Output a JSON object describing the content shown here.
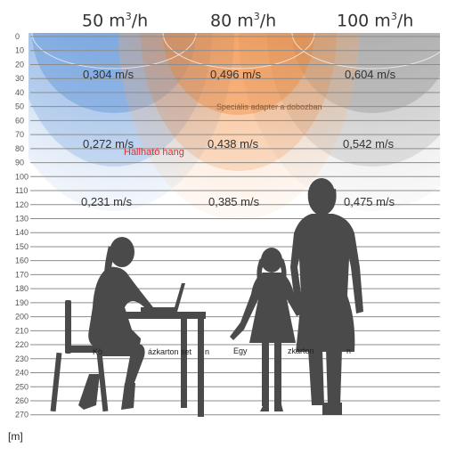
{
  "columns": [
    {
      "flow": "50 m",
      "unit_sup": "3",
      "unit_rest": "/h",
      "color": "#3d7ed2"
    },
    {
      "flow": "80 m",
      "unit_sup": "3",
      "unit_rest": "/h",
      "color": "#f07d26"
    },
    {
      "flow": "100 m",
      "unit_sup": "3",
      "unit_rest": "/h",
      "color": "#9a9a9a"
    }
  ],
  "velocities": [
    [
      "0,304 m/s",
      "0,496 m/s",
      "0,604 m/s"
    ],
    [
      "0,272 m/s",
      "0,438 m/s",
      "0,542 m/s"
    ],
    [
      "0,231 m/s",
      "0,385 m/s",
      "0,475 m/s"
    ]
  ],
  "annotations": {
    "special_adapter": "Speciális adapter a dobozban",
    "audible_sound": "Hallható hang",
    "left_caption_start": "Kö",
    "left_caption_end": "ázkarton set",
    "left_caption_tail": "n",
    "right_caption_start": "Egy",
    "right_caption_end": "zkarton",
    "right_caption_tail": "n"
  },
  "depth_ticks": [
    "0",
    "10",
    "20",
    "30",
    "40",
    "50",
    "60",
    "70",
    "80",
    "90",
    "100",
    "110",
    "120",
    "130",
    "140",
    "150",
    "160",
    "170",
    "180",
    "190",
    "200",
    "210",
    "220",
    "230",
    "240",
    "250",
    "260",
    "270"
  ],
  "unit_label": "[m]",
  "colors": {
    "blue": "#3d7ed2",
    "orange": "#f07d26",
    "gray": "#9a9a9a",
    "silhouette": "#4a4a4a",
    "grid_line": "#8c8c8c",
    "alert_text": "#e03030",
    "adapter_text": "#8a5b3a"
  },
  "icons": [
    "woman-laptop-silhouette",
    "girl-silhouette",
    "woman-silhouette",
    "chair-icon",
    "desk-icon",
    "laptop-icon"
  ]
}
